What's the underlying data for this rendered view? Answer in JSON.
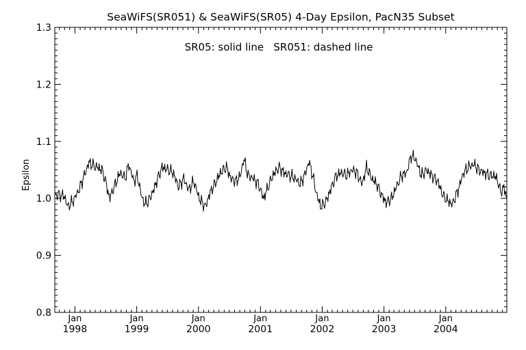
{
  "chart_data": {
    "type": "line",
    "title": "SeaWiFS(SR051) & SeaWiFS(SR05) 4-Day Epsilon, PacN35 Subset",
    "annotation": "SR05: solid line   SR051: dashed line",
    "xlabel": "",
    "ylabel": "Epsilon",
    "ylim": [
      0.8,
      1.3
    ],
    "yticks": [
      {
        "value": 0.8,
        "label": "0.8"
      },
      {
        "value": 0.9,
        "label": "0.9"
      },
      {
        "value": 1.0,
        "label": "1.0"
      },
      {
        "value": 1.1,
        "label": "1.1"
      },
      {
        "value": 1.2,
        "label": "1.2"
      },
      {
        "value": 1.3,
        "label": "1.3"
      }
    ],
    "xlim": [
      "1997-09-04",
      "2004-12-27"
    ],
    "xticks": [
      {
        "date": "1998-01-01",
        "month": "Jan",
        "year": "1998"
      },
      {
        "date": "1999-01-01",
        "month": "Jan",
        "year": "1999"
      },
      {
        "date": "2000-01-01",
        "month": "Jan",
        "year": "2000"
      },
      {
        "date": "2001-01-01",
        "month": "Jan",
        "year": "2001"
      },
      {
        "date": "2002-01-01",
        "month": "Jan",
        "year": "2002"
      },
      {
        "date": "2003-01-01",
        "month": "Jan",
        "year": "2003"
      },
      {
        "date": "2004-01-01",
        "month": "Jan",
        "year": "2004"
      }
    ],
    "grid": false,
    "series": [
      {
        "name": "SR05",
        "style": "solid",
        "color": "#000000",
        "points": [
          [
            "1997-09-06",
            1.005
          ],
          [
            "1997-10-01",
            1.007
          ],
          [
            "1997-11-01",
            1.003
          ],
          [
            "1997-11-20",
            0.985
          ],
          [
            "1997-12-20",
            0.995
          ],
          [
            "1998-01-25",
            1.015
          ],
          [
            "1998-02-25",
            1.04
          ],
          [
            "1998-03-25",
            1.063
          ],
          [
            "1998-04-15",
            1.058
          ],
          [
            "1998-05-10",
            1.055
          ],
          [
            "1998-06-10",
            1.05
          ],
          [
            "1998-07-01",
            1.03
          ],
          [
            "1998-07-25",
            1.0
          ],
          [
            "1998-08-20",
            1.02
          ],
          [
            "1998-09-25",
            1.045
          ],
          [
            "1998-10-25",
            1.035
          ],
          [
            "1998-11-15",
            1.06
          ],
          [
            "1998-12-15",
            1.03
          ],
          [
            "1999-01-05",
            1.04
          ],
          [
            "1999-01-25",
            1.01
          ],
          [
            "1999-02-15",
            0.99
          ],
          [
            "1999-03-10",
            0.995
          ],
          [
            "1999-04-05",
            1.01
          ],
          [
            "1999-05-05",
            1.035
          ],
          [
            "1999-06-01",
            1.055
          ],
          [
            "1999-07-05",
            1.05
          ],
          [
            "1999-08-05",
            1.045
          ],
          [
            "1999-09-05",
            1.02
          ],
          [
            "1999-10-05",
            1.035
          ],
          [
            "1999-11-05",
            1.015
          ],
          [
            "1999-12-05",
            1.03
          ],
          [
            "2000-01-05",
            1.0
          ],
          [
            "2000-02-10",
            0.985
          ],
          [
            "2000-03-10",
            1.01
          ],
          [
            "2000-04-15",
            1.03
          ],
          [
            "2000-05-10",
            1.045
          ],
          [
            "2000-06-15",
            1.055
          ],
          [
            "2000-07-10",
            1.035
          ],
          [
            "2000-08-10",
            1.03
          ],
          [
            "2000-09-05",
            1.04
          ],
          [
            "2000-09-25",
            1.07
          ],
          [
            "2000-10-20",
            1.04
          ],
          [
            "2000-11-20",
            1.035
          ],
          [
            "2000-12-20",
            1.025
          ],
          [
            "2001-01-20",
            1.0
          ],
          [
            "2001-02-15",
            1.02
          ],
          [
            "2001-03-15",
            1.04
          ],
          [
            "2001-04-20",
            1.055
          ],
          [
            "2001-05-20",
            1.045
          ],
          [
            "2001-06-25",
            1.04
          ],
          [
            "2001-07-25",
            1.035
          ],
          [
            "2001-08-25",
            1.025
          ],
          [
            "2001-09-25",
            1.045
          ],
          [
            "2001-10-15",
            1.065
          ],
          [
            "2001-11-10",
            1.035
          ],
          [
            "2001-12-01",
            1.005
          ],
          [
            "2001-12-25",
            0.985
          ],
          [
            "2002-01-25",
            0.995
          ],
          [
            "2002-02-25",
            1.02
          ],
          [
            "2002-03-25",
            1.04
          ],
          [
            "2002-04-25",
            1.045
          ],
          [
            "2002-05-25",
            1.04
          ],
          [
            "2002-06-25",
            1.05
          ],
          [
            "2002-07-25",
            1.045
          ],
          [
            "2002-08-25",
            1.025
          ],
          [
            "2002-09-20",
            1.055
          ],
          [
            "2002-10-20",
            1.035
          ],
          [
            "2002-11-20",
            1.025
          ],
          [
            "2002-12-20",
            1.005
          ],
          [
            "2003-01-15",
            0.992
          ],
          [
            "2003-02-15",
            1.0
          ],
          [
            "2003-03-15",
            1.02
          ],
          [
            "2003-04-15",
            1.04
          ],
          [
            "2003-05-15",
            1.045
          ],
          [
            "2003-06-10",
            1.075
          ],
          [
            "2003-07-05",
            1.07
          ],
          [
            "2003-08-10",
            1.04
          ],
          [
            "2003-09-10",
            1.05
          ],
          [
            "2003-10-10",
            1.04
          ],
          [
            "2003-11-15",
            1.03
          ],
          [
            "2003-12-15",
            1.005
          ],
          [
            "2004-01-15",
            0.995
          ],
          [
            "2004-02-10",
            0.99
          ],
          [
            "2004-03-15",
            1.015
          ],
          [
            "2004-04-15",
            1.045
          ],
          [
            "2004-05-15",
            1.055
          ],
          [
            "2004-06-15",
            1.06
          ],
          [
            "2004-07-15",
            1.05
          ],
          [
            "2004-08-15",
            1.045
          ],
          [
            "2004-09-15",
            1.04
          ],
          [
            "2004-10-15",
            1.04
          ],
          [
            "2004-11-05",
            1.03
          ],
          [
            "2004-11-20",
            1.01
          ],
          [
            "2004-12-10",
            1.02
          ],
          [
            "2004-12-26",
            0.998
          ]
        ]
      }
    ]
  }
}
